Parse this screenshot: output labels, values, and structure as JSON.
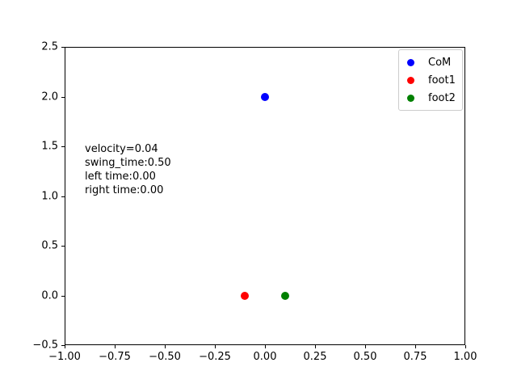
{
  "chart_data": {
    "type": "scatter",
    "title": "",
    "xlabel": "",
    "ylabel": "",
    "xlim": [
      -1.0,
      1.0
    ],
    "ylim": [
      -0.5,
      2.5
    ],
    "grid": false,
    "legend_position": "upper right",
    "series": [
      {
        "name": "CoM",
        "color": "#0000ff",
        "points": [
          {
            "x": 0.0,
            "y": 2.0
          }
        ]
      },
      {
        "name": "foot1",
        "color": "#ff0000",
        "points": [
          {
            "x": -0.1,
            "y": 0.0
          }
        ]
      },
      {
        "name": "foot2",
        "color": "#008000",
        "points": [
          {
            "x": 0.1,
            "y": 0.0
          }
        ]
      }
    ],
    "x_tick_values": [
      -1.0,
      -0.75,
      -0.5,
      -0.25,
      0.0,
      0.25,
      0.5,
      0.75,
      1.0
    ],
    "x_tick_labels": [
      "−1.00",
      "−0.75",
      "−0.50",
      "−0.25",
      "0.00",
      "0.25",
      "0.50",
      "0.75",
      "1.00"
    ],
    "y_tick_values": [
      -0.5,
      0.0,
      0.5,
      1.0,
      1.5,
      2.0,
      2.5
    ],
    "y_tick_labels": [
      "−0.5",
      "0.0",
      "0.5",
      "1.0",
      "1.5",
      "2.0",
      "2.5"
    ],
    "annotation_lines": [
      "velocity=0.04",
      "swing_time:0.50",
      "left time:0.00",
      "right time:0.00"
    ]
  },
  "legend": {
    "entries": [
      {
        "label": "CoM",
        "color": "#0000ff"
      },
      {
        "label": "foot1",
        "color": "#ff0000"
      },
      {
        "label": "foot2",
        "color": "#008000"
      }
    ]
  }
}
